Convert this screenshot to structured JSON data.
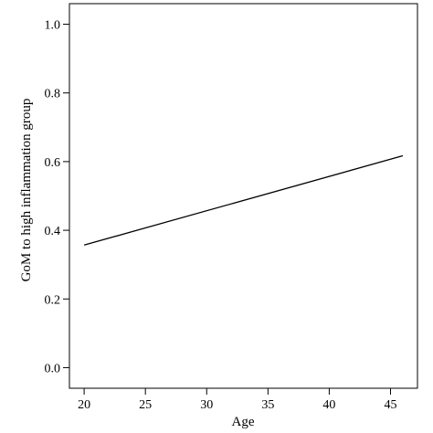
{
  "chart_data": {
    "type": "line",
    "xlabel": "Age",
    "ylabel": "GoM to high inflammation group",
    "xlim": [
      18.8,
      47.2
    ],
    "ylim": [
      -0.06,
      1.06
    ],
    "x_ticks": [
      20,
      25,
      30,
      35,
      40,
      45
    ],
    "y_ticks": [
      0.0,
      0.2,
      0.4,
      0.6,
      0.8,
      1.0
    ],
    "x_tick_labels": [
      "20",
      "25",
      "30",
      "35",
      "40",
      "45"
    ],
    "y_tick_labels": [
      "0.0",
      "0.2",
      "0.4",
      "0.6",
      "0.8",
      "1.0"
    ],
    "grid": false,
    "series": [
      {
        "x": [
          20,
          46
        ],
        "y": [
          0.357,
          0.617
        ],
        "color": "#000000"
      }
    ]
  }
}
